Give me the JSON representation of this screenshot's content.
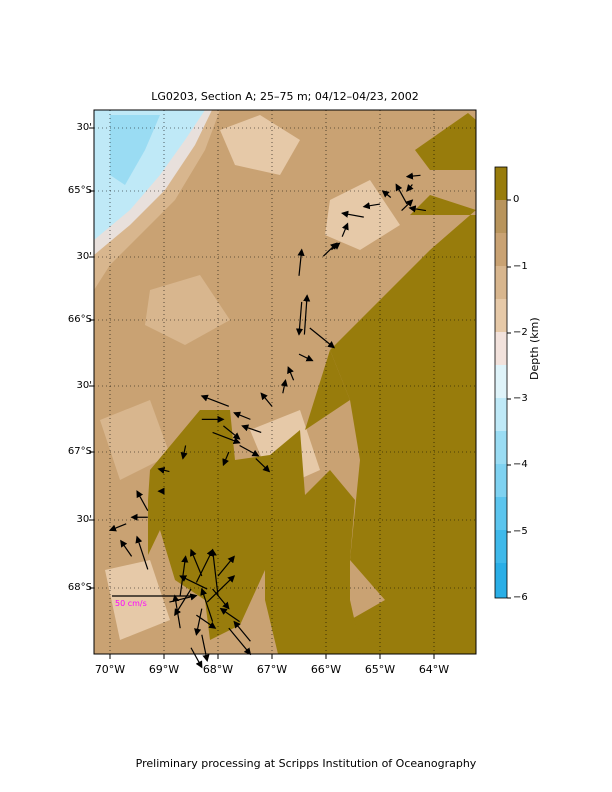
{
  "title": "LG0203, Section A; 25–75 m; 04/12–04/23, 2002",
  "footer": "Preliminary processing at Scripps Institution of Oceanography",
  "y_axis": [
    "30'",
    "65°S",
    "30'",
    "66°S",
    "30'",
    "67°S",
    "30'",
    "68°S"
  ],
  "x_axis": [
    "70°W",
    "69°W",
    "68°W",
    "67°W",
    "66°W",
    "65°W",
    "64°W"
  ],
  "colorbar": {
    "title": "Depth (km)",
    "ticks": [
      "0",
      "−1",
      "−2",
      "−3",
      "−4",
      "−5",
      "−6"
    ]
  },
  "scale_label": "50 cm/s",
  "colors": {
    "land": "#987c0c",
    "shelf": "#c9a273",
    "shallow": "#d8b68e",
    "mid": "#e6c9a8",
    "deep": "#bfe9f7",
    "deeper": "#9adcf3",
    "scale": "#ff00ff"
  },
  "axis_ranges": {
    "lon": [
      -70.3,
      -63.7
    ],
    "lat": [
      -68.4,
      -64.2
    ]
  },
  "grid": "dotted",
  "vectors": [
    [
      -64.25,
      -64.88,
      -0.25,
      -0.01
    ],
    [
      -64.4,
      -64.95,
      -0.1,
      -0.05
    ],
    [
      -64.15,
      -65.15,
      -0.3,
      0.02
    ],
    [
      -64.5,
      -65.1,
      -0.2,
      0.15
    ],
    [
      -64.8,
      -65.05,
      -0.15,
      0.05
    ],
    [
      -65.0,
      -65.1,
      -0.3,
      -0.02
    ],
    [
      -65.3,
      -65.2,
      -0.4,
      0.03
    ],
    [
      -64.6,
      -65.15,
      0.2,
      0.08
    ],
    [
      -65.7,
      -65.35,
      0.1,
      0.1
    ],
    [
      -65.9,
      -65.45,
      0.15,
      0.05
    ],
    [
      -66.05,
      -65.5,
      0.25,
      0.1
    ],
    [
      -66.5,
      -65.65,
      0.05,
      0.2
    ],
    [
      -66.45,
      -65.85,
      -0.05,
      -0.25
    ],
    [
      -66.4,
      -66.1,
      0.05,
      0.3
    ],
    [
      -66.3,
      -66.05,
      0.45,
      -0.15
    ],
    [
      -66.5,
      -66.25,
      0.25,
      -0.05
    ],
    [
      -66.6,
      -66.45,
      -0.1,
      0.1
    ],
    [
      -66.8,
      -66.55,
      0.05,
      0.1
    ],
    [
      -67.0,
      -66.65,
      -0.2,
      0.1
    ],
    [
      -67.4,
      -66.75,
      -0.3,
      0.05
    ],
    [
      -67.8,
      -66.65,
      -0.5,
      0.08
    ],
    [
      -68.3,
      -66.75,
      0.4,
      0.0
    ],
    [
      -67.9,
      -66.8,
      0.3,
      -0.1
    ],
    [
      -68.1,
      -66.85,
      0.5,
      -0.08
    ],
    [
      -67.2,
      -66.85,
      -0.35,
      0.05
    ],
    [
      -67.6,
      -66.95,
      0.35,
      -0.08
    ],
    [
      -67.3,
      -67.05,
      0.25,
      -0.1
    ],
    [
      -67.8,
      -67.0,
      -0.1,
      -0.1
    ],
    [
      -68.6,
      -66.95,
      -0.05,
      -0.1
    ],
    [
      -68.9,
      -67.15,
      -0.2,
      0.02
    ],
    [
      -69.0,
      -67.3,
      -0.1,
      0.0
    ],
    [
      -69.3,
      -67.45,
      -0.2,
      0.15
    ],
    [
      -69.7,
      -67.55,
      -0.3,
      -0.05
    ],
    [
      -69.3,
      -67.5,
      -0.3,
      0.0
    ],
    [
      -69.6,
      -67.8,
      -0.2,
      0.12
    ],
    [
      -69.3,
      -67.9,
      -0.2,
      0.25
    ],
    [
      -68.4,
      -68.0,
      0.3,
      0.25
    ],
    [
      -68.3,
      -67.95,
      -0.2,
      0.2
    ],
    [
      -68.0,
      -67.95,
      0.3,
      0.15
    ],
    [
      -68.2,
      -68.05,
      -0.5,
      0.1
    ],
    [
      -68.1,
      -68.05,
      0.3,
      -0.15
    ],
    [
      -68.0,
      -68.1,
      -0.1,
      0.35
    ],
    [
      -68.5,
      -68.05,
      -0.3,
      -0.2
    ],
    [
      -68.7,
      -68.1,
      0.1,
      0.3
    ],
    [
      -68.2,
      -68.15,
      0.5,
      0.2
    ],
    [
      -68.3,
      -68.2,
      -0.1,
      -0.2
    ],
    [
      -68.9,
      -68.15,
      0.5,
      0.05
    ],
    [
      -68.4,
      -68.25,
      0.35,
      -0.1
    ],
    [
      -68.1,
      -68.3,
      -0.2,
      0.25
    ],
    [
      -67.6,
      -68.3,
      -0.35,
      0.1
    ],
    [
      -67.4,
      -68.45,
      -0.3,
      0.15
    ],
    [
      -67.8,
      -68.35,
      0.4,
      -0.2
    ],
    [
      -68.5,
      -68.5,
      0.2,
      -0.15
    ],
    [
      -68.7,
      -68.35,
      -0.1,
      0.25
    ],
    [
      -68.3,
      -68.4,
      0.1,
      -0.2
    ]
  ]
}
